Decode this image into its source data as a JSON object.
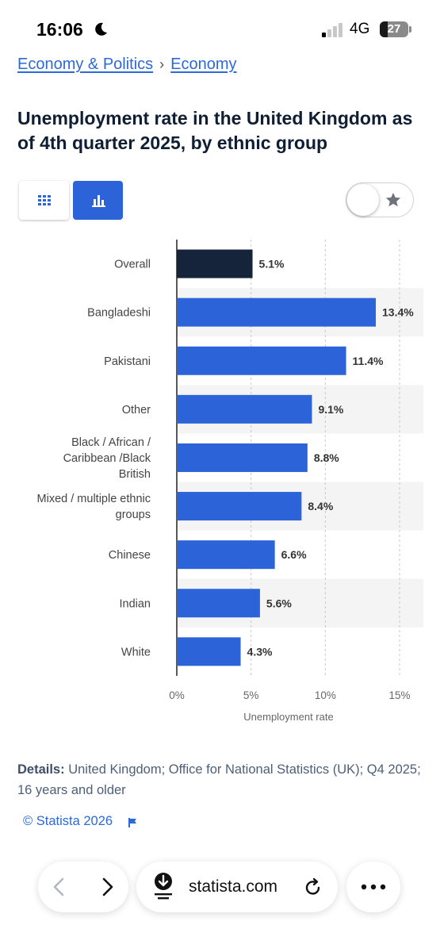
{
  "status_bar": {
    "time": "16:06",
    "network": "4G",
    "battery": "27"
  },
  "breadcrumb": {
    "items": [
      "Economy & Politics",
      "Economy"
    ],
    "separator": "›"
  },
  "title": "Unemployment rate in the United Kingdom as of 4th quarter 2025, by ethnic group",
  "view_toggle": {
    "icons": [
      "table-icon",
      "bar-chart-icon"
    ],
    "active": "bar-chart-icon"
  },
  "colors": {
    "accent": "#2d63d8",
    "overall_bar": "#16243b",
    "link": "#2d6ad6"
  },
  "chart_data": {
    "type": "bar",
    "orientation": "horizontal",
    "categories": [
      "Overall",
      "Bangladeshi",
      "Pakistani",
      "Other",
      "Black / African / Caribbean /Black British",
      "Mixed / multiple ethnic groups",
      "Chinese",
      "Indian",
      "White"
    ],
    "values": [
      5.1,
      13.4,
      11.4,
      9.1,
      8.8,
      8.4,
      6.6,
      5.6,
      4.3
    ],
    "data_labels": [
      "5.1%",
      "13.4%",
      "11.4%",
      "9.1%",
      "8.8%",
      "8.4%",
      "6.6%",
      "5.6%",
      "4.3%"
    ],
    "xlabel": "Unemployment rate",
    "xlim": [
      0,
      15
    ],
    "x_ticks": [
      "0%",
      "5%",
      "10%",
      "15%"
    ],
    "grid": "vertical dashed",
    "highlight": "Overall"
  },
  "details": {
    "label": "Details:",
    "text": "United Kingdom; Office for National Statistics (UK); Q4 2025; 16 years and older"
  },
  "copyright": "© Statista 2026",
  "browser_bar": {
    "url": "statista.com"
  }
}
